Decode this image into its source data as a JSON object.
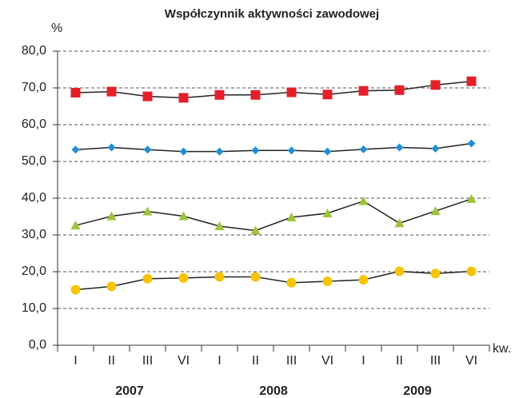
{
  "chart_data": {
    "type": "line",
    "title": "Współczynnik aktywności zawodowej",
    "y_label": "%",
    "x_unit": "kw.",
    "categories": [
      "I",
      "II",
      "III",
      "VI",
      "I",
      "II",
      "III",
      "VI",
      "I",
      "II",
      "III",
      "VI"
    ],
    "year_labels": [
      "2007",
      "2008",
      "2009"
    ],
    "series": [
      {
        "color": "#e3202a",
        "marker": "square",
        "values": [
          68.7,
          69.0,
          67.7,
          67.3,
          68.1,
          68.1,
          68.8,
          68.2,
          69.2,
          69.4,
          70.8,
          71.8
        ]
      },
      {
        "color": "#1f8fd6",
        "marker": "diamond",
        "values": [
          53.2,
          53.8,
          53.2,
          52.7,
          52.7,
          53.0,
          53.0,
          52.7,
          53.3,
          53.8,
          53.5,
          54.9
        ]
      },
      {
        "color": "#9cc43a",
        "marker": "triangle",
        "values": [
          32.6,
          35.1,
          36.4,
          35.1,
          32.4,
          31.2,
          34.8,
          35.9,
          39.2,
          33.2,
          36.5,
          39.8
        ]
      },
      {
        "color": "#f5c400",
        "marker": "circle",
        "values": [
          15.1,
          16.0,
          18.1,
          18.3,
          18.6,
          18.6,
          17.0,
          17.4,
          17.8,
          20.1,
          19.5,
          20.1
        ]
      }
    ],
    "ylim": [
      0,
      80
    ],
    "yticks": [
      {
        "value": 0,
        "label": "0,0"
      },
      {
        "value": 10,
        "label": "10,0"
      },
      {
        "value": 20,
        "label": "20,0"
      },
      {
        "value": 30,
        "label": "30,0"
      },
      {
        "value": 40,
        "label": "40,0"
      },
      {
        "value": 50,
        "label": "50,0"
      },
      {
        "value": 60,
        "label": "60,0"
      },
      {
        "value": 70,
        "label": "70,0"
      },
      {
        "value": 80,
        "label": "80,0"
      }
    ],
    "grid": true
  }
}
